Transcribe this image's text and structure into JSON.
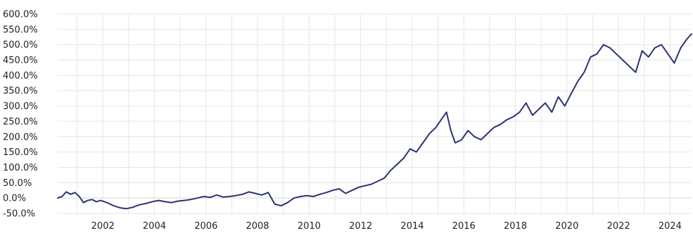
{
  "chart_data": {
    "type": "line",
    "title": "",
    "xlabel": "",
    "ylabel": "",
    "ylim": [
      -50,
      600
    ],
    "xlim": [
      "2000-04-01",
      "2024-11-01"
    ],
    "grid": true,
    "legend": "none",
    "y_ticks": [
      -50,
      0,
      50,
      100,
      150,
      200,
      250,
      300,
      350,
      400,
      450,
      500,
      550,
      600
    ],
    "y_tick_labels": [
      "-50.0%",
      "0.0%",
      "50.0%",
      "100.0%",
      "150.0%",
      "200.0%",
      "250.0%",
      "300.0%",
      "350.0%",
      "400.0%",
      "450.0%",
      "500.0%",
      "550.0%",
      "600.0%"
    ],
    "x_ticks": [
      "2002-01-01",
      "2004-01-01",
      "2006-01-01",
      "2008-01-01",
      "2010-01-01",
      "2012-01-01",
      "2014-01-01",
      "2016-01-01",
      "2018-01-01",
      "2020-01-01",
      "2022-01-01",
      "2024-01-01"
    ],
    "x_tick_labels": [
      "2002",
      "2004",
      "2006",
      "2008",
      "2010",
      "2012",
      "2014",
      "2016",
      "2018",
      "2020",
      "2022",
      "2024"
    ],
    "series": [
      {
        "color": "#2b3470",
        "x": [
          "2000-04-01",
          "2000-06-01",
          "2000-08-01",
          "2000-10-01",
          "2000-12-01",
          "2001-02-01",
          "2001-04-01",
          "2001-06-01",
          "2001-08-01",
          "2001-10-01",
          "2001-12-01",
          "2002-03-01",
          "2002-06-01",
          "2002-09-01",
          "2002-12-01",
          "2003-03-01",
          "2003-06-01",
          "2003-09-01",
          "2003-12-01",
          "2004-03-01",
          "2004-06-01",
          "2004-09-01",
          "2004-12-01",
          "2005-03-01",
          "2005-06-01",
          "2005-09-01",
          "2005-12-01",
          "2006-03-01",
          "2006-06-01",
          "2006-09-01",
          "2006-12-01",
          "2007-03-01",
          "2007-06-01",
          "2007-09-01",
          "2007-12-01",
          "2008-03-01",
          "2008-06-01",
          "2008-09-01",
          "2008-12-01",
          "2009-03-01",
          "2009-06-01",
          "2009-09-01",
          "2009-12-01",
          "2010-03-01",
          "2010-06-01",
          "2010-09-01",
          "2010-12-01",
          "2011-03-01",
          "2011-06-01",
          "2011-09-01",
          "2011-12-01",
          "2012-03-01",
          "2012-06-01",
          "2012-09-01",
          "2012-12-01",
          "2013-03-01",
          "2013-06-01",
          "2013-09-01",
          "2013-12-01",
          "2014-03-01",
          "2014-06-01",
          "2014-09-01",
          "2014-12-01",
          "2015-03-01",
          "2015-05-01",
          "2015-07-01",
          "2015-09-01",
          "2015-12-01",
          "2016-03-01",
          "2016-06-01",
          "2016-09-01",
          "2016-12-01",
          "2017-03-01",
          "2017-06-01",
          "2017-09-01",
          "2017-12-01",
          "2018-03-01",
          "2018-06-01",
          "2018-09-01",
          "2018-12-01",
          "2019-03-01",
          "2019-06-01",
          "2019-09-01",
          "2019-12-01",
          "2020-03-01",
          "2020-06-01",
          "2020-09-01",
          "2020-12-01",
          "2021-03-01",
          "2021-06-01",
          "2021-09-01",
          "2021-12-01",
          "2022-03-01",
          "2022-06-01",
          "2022-09-01",
          "2022-12-01",
          "2023-03-01",
          "2023-06-01",
          "2023-09-01",
          "2023-12-01",
          "2024-03-01",
          "2024-06-01",
          "2024-09-01",
          "2024-11-01"
        ],
        "values": [
          0,
          5,
          20,
          12,
          18,
          5,
          -15,
          -8,
          -5,
          -12,
          -8,
          -15,
          -25,
          -32,
          -35,
          -30,
          -22,
          -18,
          -12,
          -8,
          -12,
          -15,
          -10,
          -8,
          -5,
          0,
          5,
          2,
          10,
          3,
          5,
          8,
          12,
          20,
          15,
          10,
          18,
          -20,
          -25,
          -15,
          0,
          5,
          8,
          5,
          12,
          18,
          25,
          30,
          15,
          25,
          35,
          40,
          45,
          55,
          65,
          90,
          110,
          130,
          160,
          150,
          180,
          210,
          230,
          260,
          280,
          220,
          180,
          190,
          220,
          200,
          190,
          210,
          230,
          240,
          255,
          265,
          280,
          310,
          270,
          290,
          310,
          280,
          330,
          300,
          340,
          380,
          410,
          460,
          470,
          500,
          490,
          470,
          450,
          430,
          410,
          480,
          460,
          490,
          500,
          470,
          440,
          490,
          520,
          535
        ]
      }
    ]
  }
}
